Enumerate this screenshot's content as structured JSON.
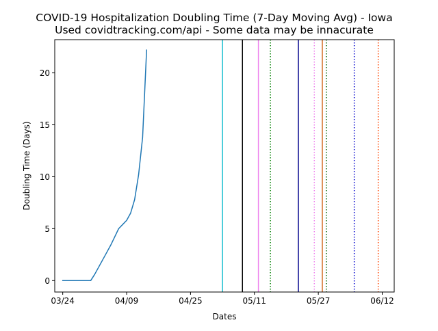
{
  "chart_data": {
    "type": "line",
    "title": "COVID-19 Hospitalization Doubling Time (7-Day Moving Avg) - Iowa",
    "subtitle": "Used covidtracking.com/api - Some data may be innacurate",
    "xlabel": "Dates",
    "ylabel": "Doubling Time (Days)",
    "x_axis_type": "date",
    "xlim": [
      "2020-03-22",
      "2020-06-15"
    ],
    "ylim": [
      -1.1,
      23.2
    ],
    "x_ticks": [
      {
        "date": "2020-03-24",
        "label": "03/24"
      },
      {
        "date": "2020-04-09",
        "label": "04/09"
      },
      {
        "date": "2020-04-25",
        "label": "04/25"
      },
      {
        "date": "2020-05-11",
        "label": "05/11"
      },
      {
        "date": "2020-05-27",
        "label": "05/27"
      },
      {
        "date": "2020-06-12",
        "label": "06/12"
      }
    ],
    "y_ticks": [
      {
        "value": 0,
        "label": "0"
      },
      {
        "value": 5,
        "label": "5"
      },
      {
        "value": 10,
        "label": "10"
      },
      {
        "value": 15,
        "label": "15"
      },
      {
        "value": 20,
        "label": "20"
      }
    ],
    "grid": false,
    "series": [
      {
        "color": "#1f77b4",
        "points": [
          {
            "x": "2020-03-24",
            "y": 0
          },
          {
            "x": "2020-03-25",
            "y": 0
          },
          {
            "x": "2020-03-26",
            "y": 0
          },
          {
            "x": "2020-03-27",
            "y": 0
          },
          {
            "x": "2020-03-28",
            "y": 0
          },
          {
            "x": "2020-03-29",
            "y": 0
          },
          {
            "x": "2020-03-30",
            "y": 0
          },
          {
            "x": "2020-03-31",
            "y": 0
          },
          {
            "x": "2020-04-01",
            "y": 0.6
          },
          {
            "x": "2020-04-02",
            "y": 1.3
          },
          {
            "x": "2020-04-03",
            "y": 2.0
          },
          {
            "x": "2020-04-04",
            "y": 2.7
          },
          {
            "x": "2020-04-05",
            "y": 3.4
          },
          {
            "x": "2020-04-06",
            "y": 4.2
          },
          {
            "x": "2020-04-07",
            "y": 5.0
          },
          {
            "x": "2020-04-08",
            "y": 5.4
          },
          {
            "x": "2020-04-09",
            "y": 5.8
          },
          {
            "x": "2020-04-10",
            "y": 6.5
          },
          {
            "x": "2020-04-11",
            "y": 7.8
          },
          {
            "x": "2020-04-12",
            "y": 10.2
          },
          {
            "x": "2020-04-13",
            "y": 13.8
          },
          {
            "x": "2020-04-14",
            "y": 22.2
          }
        ]
      }
    ],
    "vertical_lines": [
      {
        "x": "2020-05-03",
        "color": "#17becf",
        "style": "solid"
      },
      {
        "x": "2020-05-08",
        "color": "#000000",
        "style": "solid"
      },
      {
        "x": "2020-05-12",
        "color": "#ee82ee",
        "style": "solid"
      },
      {
        "x": "2020-05-15",
        "color": "#008000",
        "style": "dotted"
      },
      {
        "x": "2020-05-22",
        "color": "#00008b",
        "style": "solid"
      },
      {
        "x": "2020-05-26",
        "color": "#ee82ee",
        "style": "dotted"
      },
      {
        "x": "2020-05-28",
        "color": "#d2691e",
        "style": "solid"
      },
      {
        "x": "2020-05-29",
        "color": "#006400",
        "style": "dotted"
      },
      {
        "x": "2020-06-05",
        "color": "#0000cd",
        "style": "dotted"
      },
      {
        "x": "2020-06-11",
        "color": "#ff4500",
        "style": "dotted"
      }
    ]
  }
}
